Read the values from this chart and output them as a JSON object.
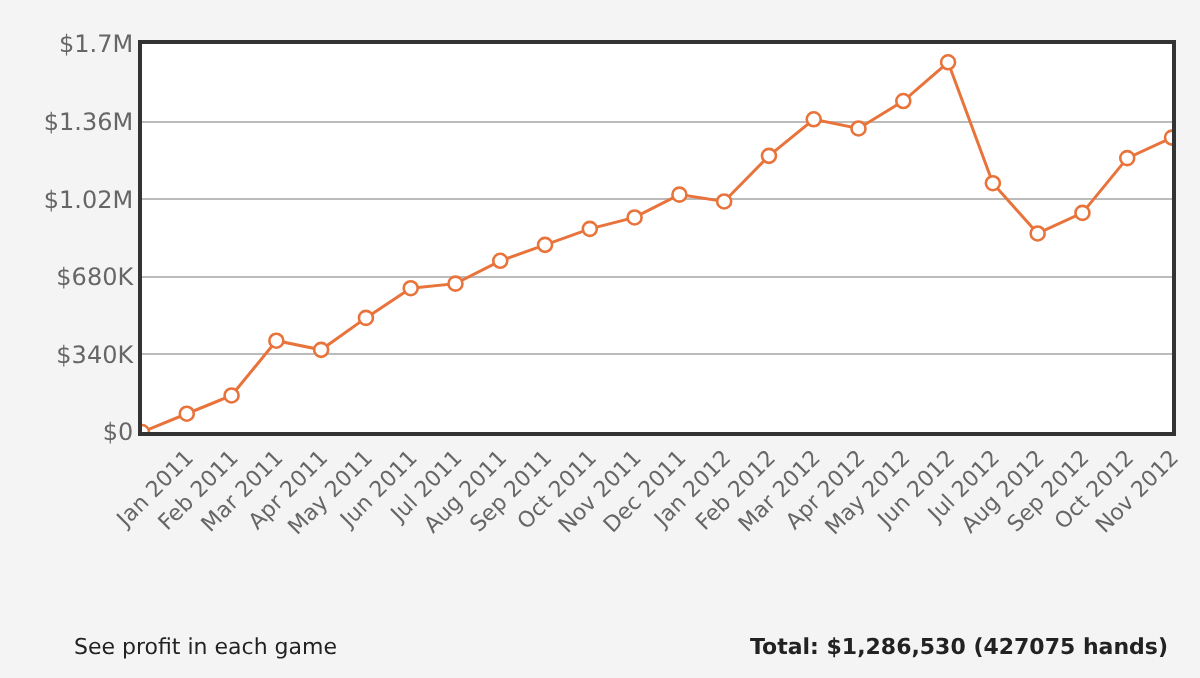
{
  "chart_data": {
    "type": "line",
    "categories": [
      null,
      "Jan 2011",
      "Feb 2011",
      "Mar 2011",
      "Apr 2011",
      "May 2011",
      "Jun 2011",
      "Jul 2011",
      "Aug 2011",
      "Sep 2011",
      "Oct 2011",
      "Nov 2011",
      "Dec 2011",
      "Jan 2012",
      "Feb 2012",
      "Mar 2012",
      "Apr 2012",
      "May 2012",
      "Jun 2012",
      "Jul 2012",
      "Aug 2012",
      "Sep 2012",
      "Oct 2012",
      "Nov 2012"
    ],
    "series": [
      {
        "color": "#e8743b",
        "values": [
          0,
          80000,
          160000,
          400000,
          360000,
          500000,
          630000,
          650000,
          750000,
          820000,
          890000,
          940000,
          1040000,
          1010000,
          1210000,
          1370000,
          1330000,
          1450000,
          1620000,
          1090000,
          870000,
          960000,
          1200000,
          1290000
        ]
      }
    ],
    "ylim": [
      0,
      1700000
    ],
    "yticks": [
      {
        "value": 0,
        "label": "$0"
      },
      {
        "value": 340000,
        "label": "$340K"
      },
      {
        "value": 680000,
        "label": "$680K"
      },
      {
        "value": 1020000,
        "label": "$1.02M"
      },
      {
        "value": 1360000,
        "label": "$1.36M"
      },
      {
        "value": 1700000,
        "label": "$1.7M"
      }
    ],
    "grid": "y",
    "marker": "circle",
    "line_style": "solid",
    "annotations": [
      "See profit in each game",
      "Total: $1,286,530 (427075 hands)"
    ]
  }
}
